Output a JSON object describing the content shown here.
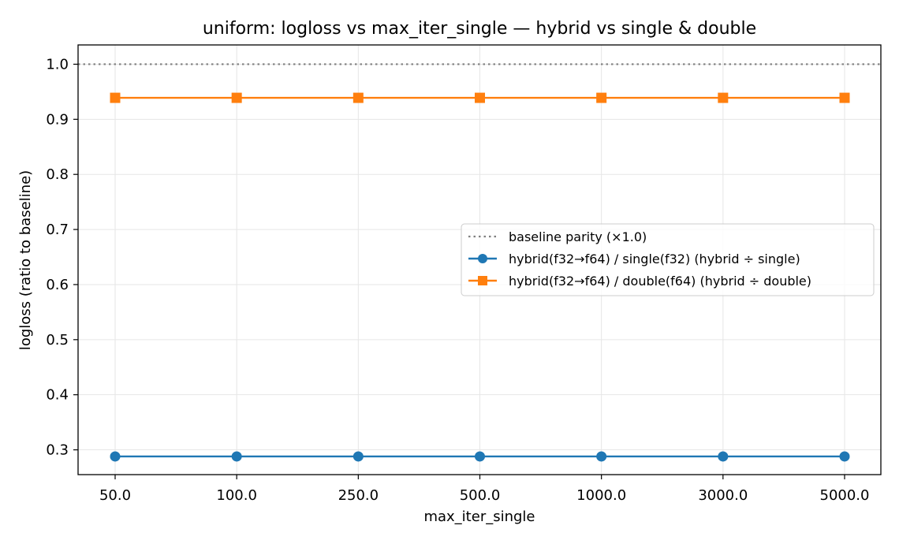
{
  "chart_data": {
    "type": "line",
    "title": "uniform: logloss vs max_iter_single — hybrid vs single & double",
    "xlabel": "max_iter_single",
    "ylabel": "logloss (ratio to baseline)",
    "x_categorical": true,
    "categories": [
      "50.0",
      "100.0",
      "250.0",
      "500.0",
      "1000.0",
      "3000.0",
      "5000.0"
    ],
    "ylim": [
      0.255,
      1.035
    ],
    "yticks": [
      "0.3",
      "0.4",
      "0.5",
      "0.6",
      "0.7",
      "0.8",
      "0.9",
      "1.0"
    ],
    "grid": true,
    "legend_position": "center-right",
    "reference_line": {
      "name": "baseline parity (×1.0)",
      "y": 1.0,
      "color": "#808080",
      "style": "dotted"
    },
    "series": [
      {
        "name": "hybrid(f32→f64) / single(f32)  (hybrid ÷ single)",
        "color": "#1f77b4",
        "marker": "circle",
        "values": [
          0.288,
          0.288,
          0.288,
          0.288,
          0.288,
          0.288,
          0.288
        ]
      },
      {
        "name": "hybrid(f32→f64) / double(f64)  (hybrid ÷ double)",
        "color": "#ff7f0e",
        "marker": "square",
        "values": [
          0.939,
          0.939,
          0.939,
          0.939,
          0.939,
          0.939,
          0.939
        ]
      }
    ]
  }
}
